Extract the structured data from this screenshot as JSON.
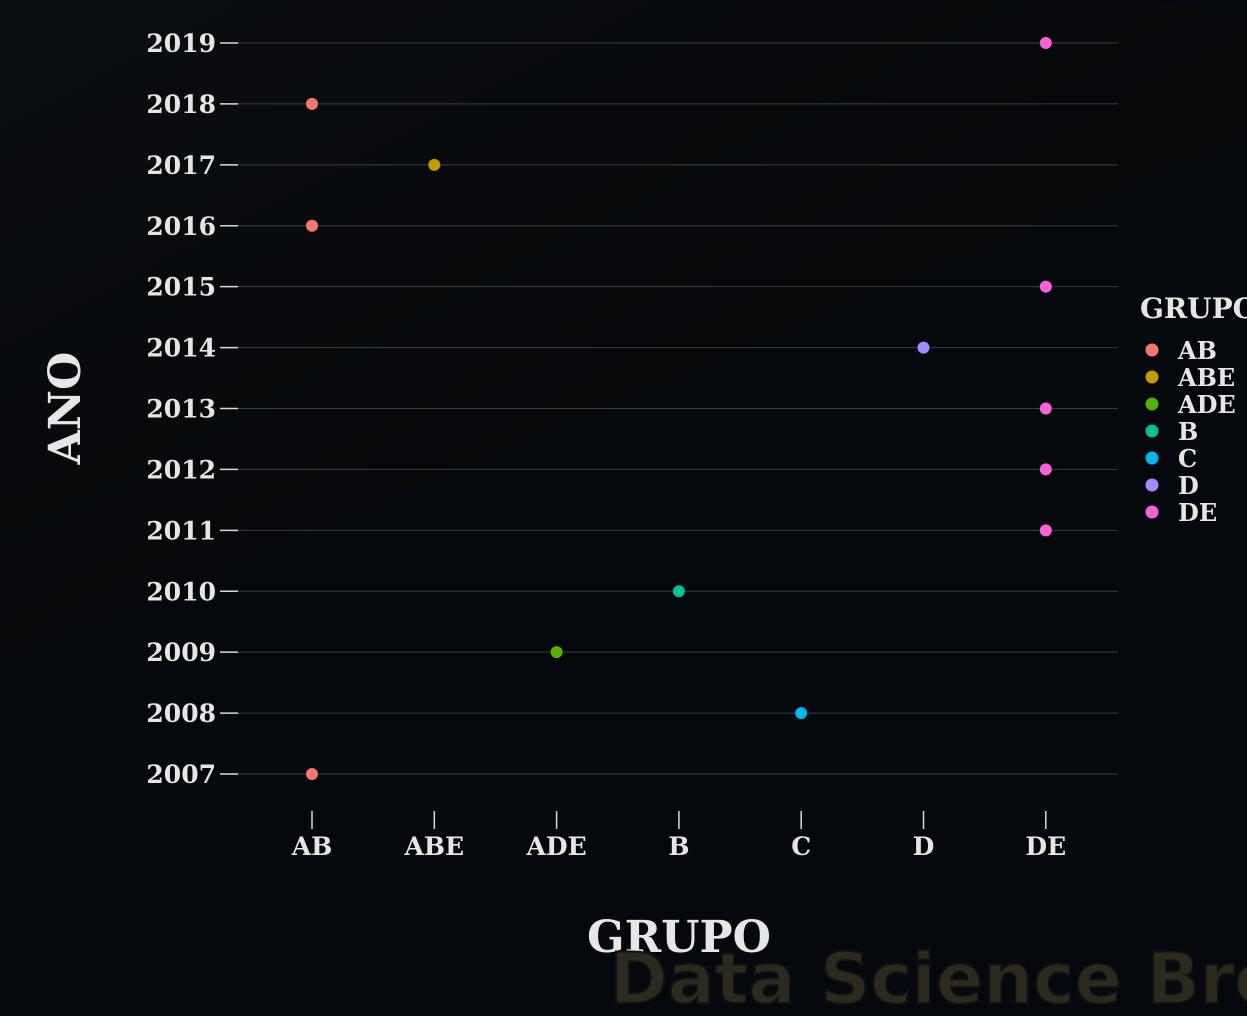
{
  "chart_data": {
    "type": "scatter",
    "x_categories": [
      "AB",
      "ABE",
      "ADE",
      "B",
      "C",
      "D",
      "DE"
    ],
    "y_ticks": [
      "2007",
      "2008",
      "2009",
      "2010",
      "2011",
      "2012",
      "2013",
      "2014",
      "2015",
      "2016",
      "2017",
      "2018",
      "2019"
    ],
    "points": [
      {
        "x": "DE",
        "y": 2019
      },
      {
        "x": "AB",
        "y": 2018
      },
      {
        "x": "ABE",
        "y": 2017
      },
      {
        "x": "AB",
        "y": 2016
      },
      {
        "x": "DE",
        "y": 2015
      },
      {
        "x": "D",
        "y": 2014
      },
      {
        "x": "DE",
        "y": 2013
      },
      {
        "x": "DE",
        "y": 2012
      },
      {
        "x": "DE",
        "y": 2011
      },
      {
        "x": "B",
        "y": 2010
      },
      {
        "x": "ADE",
        "y": 2009
      },
      {
        "x": "C",
        "y": 2008
      },
      {
        "x": "AB",
        "y": 2007
      }
    ],
    "xlabel": "GRUPO",
    "ylabel": "ANO",
    "ylim": [
      2007,
      2019
    ],
    "grid": "horizontal",
    "legend": {
      "title": "GRUPO",
      "placement": "right",
      "entries": [
        {
          "label": "AB",
          "color": "#f8766d"
        },
        {
          "label": "ABE",
          "color": "#c49a00"
        },
        {
          "label": "ADE",
          "color": "#53b400"
        },
        {
          "label": "B",
          "color": "#00c094"
        },
        {
          "label": "C",
          "color": "#00b6eb"
        },
        {
          "label": "D",
          "color": "#a58aff"
        },
        {
          "label": "DE",
          "color": "#fb61d7"
        }
      ]
    },
    "watermark": "Data Science Broon"
  }
}
